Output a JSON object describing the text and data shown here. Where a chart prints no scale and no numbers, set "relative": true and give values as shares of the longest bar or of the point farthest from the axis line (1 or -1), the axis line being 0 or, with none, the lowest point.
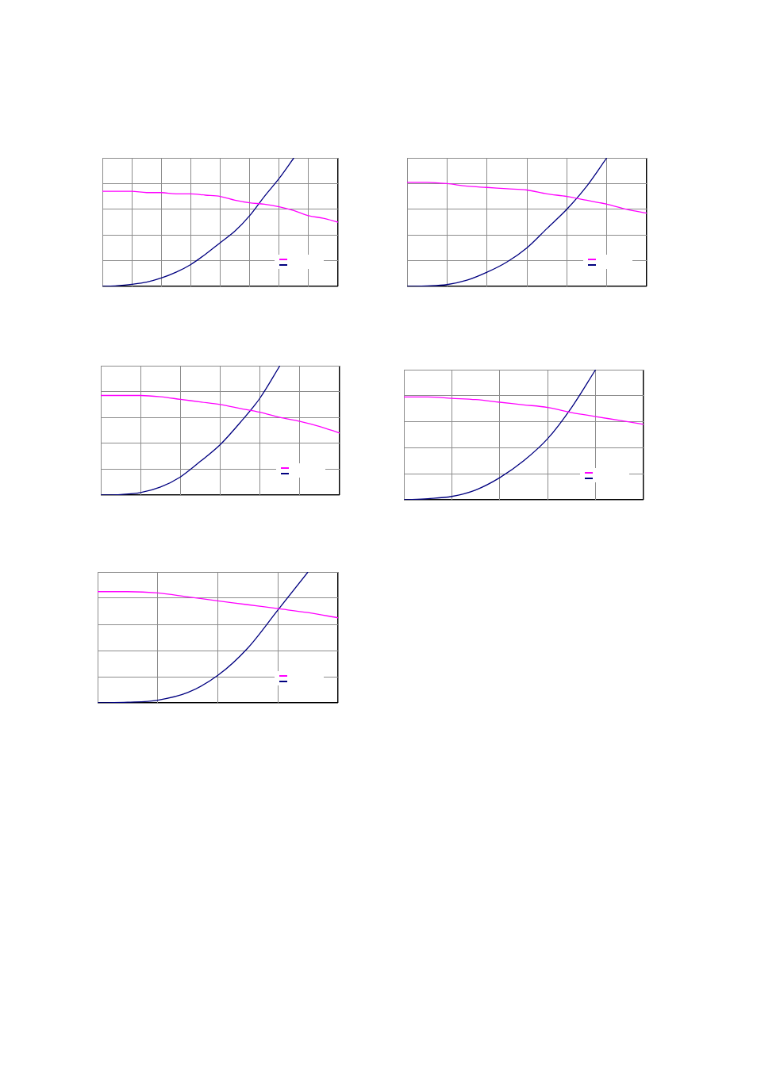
{
  "chart_data": [
    {
      "type": "line",
      "relative": true,
      "categories": [
        null,
        null,
        null,
        null,
        null,
        null,
        null,
        null,
        null,
        null,
        null,
        null,
        null,
        null,
        null,
        null,
        null
      ],
      "grid": true,
      "marker": "none",
      "line_style": "solid",
      "series": [
        {
          "color": "#ff00ff",
          "values": [
            0.74,
            0.74,
            0.74,
            0.73,
            0.73,
            0.72,
            0.72,
            0.71,
            0.7,
            0.67,
            0.65,
            0.64,
            0.62,
            0.59,
            0.55,
            0.53,
            0.5
          ]
        },
        {
          "color": "#000080",
          "values": [
            0,
            0.005,
            0.016,
            0.033,
            0.065,
            0.11,
            0.17,
            0.25,
            0.34,
            0.43,
            0.55,
            0.7,
            0.84,
            1,
            null,
            null,
            null
          ]
        }
      ]
    },
    {
      "type": "line",
      "relative": true,
      "categories": [
        null,
        null,
        null,
        null,
        null,
        null,
        null,
        null,
        null,
        null,
        null,
        null,
        null
      ],
      "grid": true,
      "marker": "none",
      "line_style": "solid",
      "series": [
        {
          "color": "#ff00ff",
          "values": [
            0.81,
            0.81,
            0.8,
            0.78,
            0.77,
            0.76,
            0.75,
            0.72,
            0.7,
            0.67,
            0.64,
            0.6,
            0.57
          ]
        },
        {
          "color": "#000080",
          "values": [
            0,
            0.004,
            0.014,
            0.048,
            0.11,
            0.19,
            0.3,
            0.45,
            0.6,
            0.78,
            1,
            null,
            null
          ]
        }
      ]
    },
    {
      "type": "line",
      "relative": true,
      "categories": [
        null,
        null,
        null,
        null,
        null,
        null,
        null,
        null,
        null,
        null,
        null,
        null,
        null
      ],
      "grid": true,
      "marker": "none",
      "line_style": "solid",
      "series": [
        {
          "color": "#ff00ff",
          "values": [
            0.77,
            0.77,
            0.77,
            0.76,
            0.74,
            0.72,
            0.7,
            0.67,
            0.64,
            0.6,
            0.57,
            0.53,
            0.48
          ]
        },
        {
          "color": "#000080",
          "values": [
            0,
            0.004,
            0.019,
            0.062,
            0.14,
            0.26,
            0.39,
            0.56,
            0.75,
            1,
            null,
            null,
            null
          ]
        }
      ]
    },
    {
      "type": "line",
      "relative": true,
      "categories": [
        null,
        null,
        null,
        null,
        null,
        null,
        null,
        null,
        null,
        null,
        null
      ],
      "grid": true,
      "marker": "none",
      "line_style": "solid",
      "series": [
        {
          "color": "#ff00ff",
          "values": [
            0.79,
            0.79,
            0.78,
            0.77,
            0.75,
            0.73,
            0.71,
            0.67,
            0.64,
            0.61,
            0.58
          ]
        },
        {
          "color": "#000080",
          "values": [
            0,
            0.009,
            0.026,
            0.076,
            0.17,
            0.3,
            0.47,
            0.71,
            1,
            null,
            null
          ]
        }
      ]
    },
    {
      "type": "line",
      "relative": true,
      "categories": [
        null,
        null,
        null,
        null,
        null,
        null,
        null,
        null,
        null
      ],
      "grid": true,
      "marker": "none",
      "line_style": "solid",
      "series": [
        {
          "color": "#ff00ff",
          "values": [
            0.85,
            0.85,
            0.84,
            0.81,
            0.78,
            0.75,
            0.72,
            0.69,
            0.65
          ]
        },
        {
          "color": "#000080",
          "values": [
            0,
            0.005,
            0.021,
            0.079,
            0.21,
            0.42,
            0.71,
            1,
            null
          ]
        }
      ]
    }
  ]
}
